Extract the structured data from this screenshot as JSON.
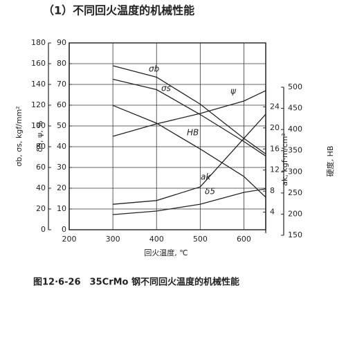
{
  "chart_data": {
    "type": "line",
    "title": "（1）不同回火温度的机械性能",
    "caption": "图12·6-26　35CrMo 钢不同回火温度的机械性能",
    "x_label": "回火温度, ℃",
    "xlim": [
      200,
      650
    ],
    "xticks": [
      200,
      300,
      400,
      500,
      600
    ],
    "grid": true,
    "axes": [
      {
        "label": "σb, σs, kgf/mm²",
        "lim": [
          0,
          180
        ],
        "ticks": [
          0,
          20,
          40,
          60,
          80,
          100,
          120,
          140,
          160,
          180
        ]
      },
      {
        "label": "δ5, ψ, %",
        "lim": [
          0,
          90
        ],
        "ticks": [
          0,
          10,
          20,
          30,
          40,
          50,
          60,
          70,
          80,
          90
        ]
      },
      {
        "label": "ak, kgf·m/cm²",
        "lim": [
          0,
          28
        ],
        "ticks": [
          4,
          8,
          12,
          16,
          20,
          24
        ]
      },
      {
        "label": "硬度, HB",
        "lim": [
          150,
          500
        ],
        "ticks": [
          150,
          200,
          250,
          300,
          350,
          400,
          450,
          500
        ]
      }
    ],
    "x": [
      300,
      400,
      500,
      600,
      650
    ],
    "series": [
      {
        "name": "σb",
        "axis": 0,
        "color": "#222",
        "values": [
          158,
          147,
          121,
          88,
          73
        ]
      },
      {
        "name": "σs",
        "axis": 0,
        "color": "#222",
        "values": [
          145,
          135,
          111,
          85,
          71
        ]
      },
      {
        "name": "ψ",
        "axis": 1,
        "color": "#222",
        "values": [
          45,
          51,
          56,
          62,
          67
        ]
      },
      {
        "name": "HB",
        "axis": 3,
        "color": "#222",
        "values": [
          457,
          415,
          354,
          289,
          240
        ]
      },
      {
        "name": "ak",
        "axis": 2,
        "color": "#222",
        "values": [
          5.5,
          6.2,
          8.8,
          18,
          22.6
        ]
      },
      {
        "name": "δ5",
        "axis": 1,
        "color": "#222",
        "values": [
          7.3,
          9,
          12.3,
          18,
          19.7
        ]
      }
    ]
  }
}
